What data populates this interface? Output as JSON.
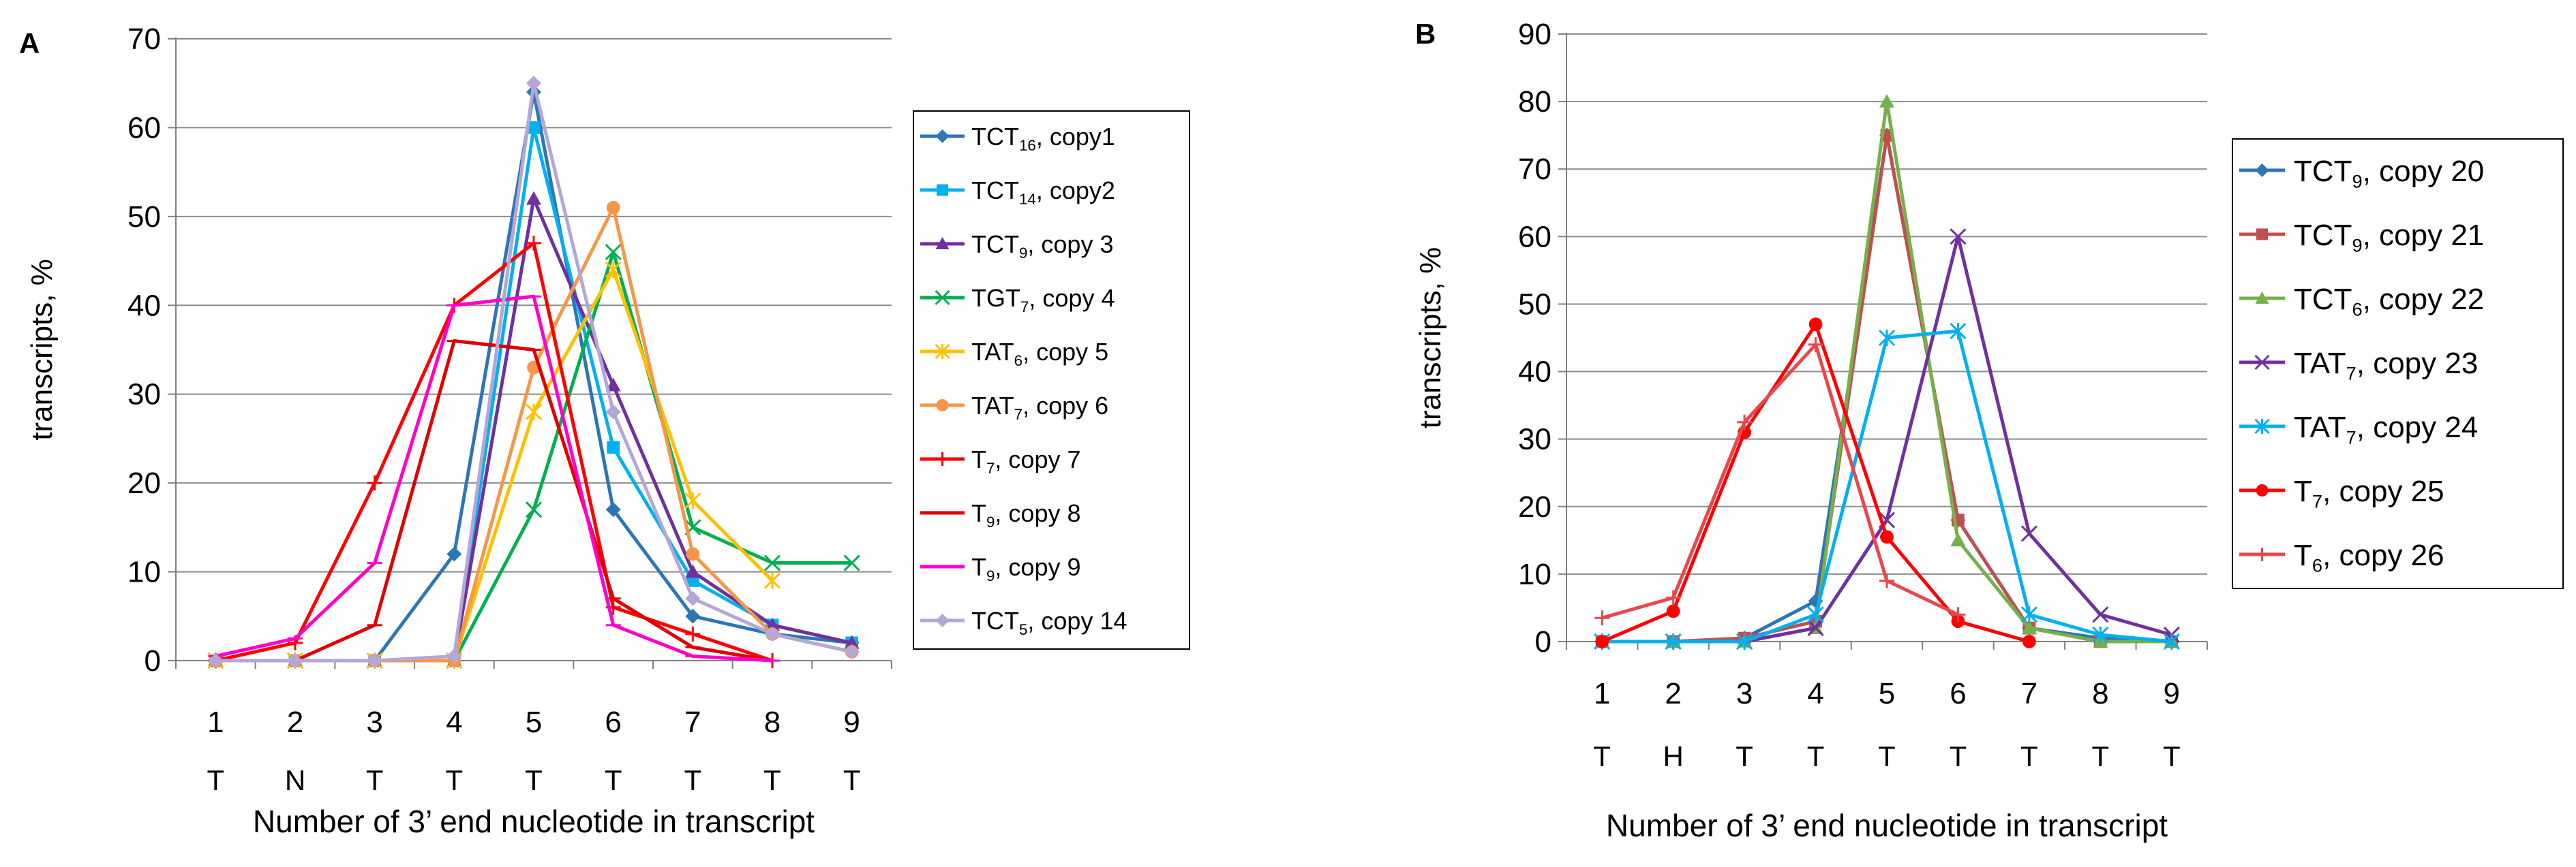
{
  "chart_data": [
    {
      "type": "line",
      "panel_label": "A",
      "ylabel": "transcripts, %",
      "xlabel": "Number of 3’ end nucleotide in transcript",
      "ylim": [
        0,
        70
      ],
      "yticks": [
        0,
        10,
        20,
        30,
        40,
        50,
        60,
        70
      ],
      "grid": true,
      "legend_position": "right",
      "x": [
        1,
        2,
        3,
        4,
        5,
        6,
        7,
        8,
        9
      ],
      "x_tick_labels": [
        "1",
        "2",
        "3",
        "4",
        "5",
        "6",
        "7",
        "8",
        "9"
      ],
      "x_letters": [
        "T",
        "N",
        "T",
        "T",
        "T",
        "T",
        "T",
        "T",
        "T"
      ],
      "series": [
        {
          "name": "TCT16, copy1",
          "base": "TCT",
          "sub": "16",
          "suffix": ", copy1",
          "color": "#2E75B6",
          "marker": "diamond",
          "values": [
            0,
            0,
            0,
            12,
            64,
            17,
            5,
            3,
            2
          ]
        },
        {
          "name": "TCT14, copy2",
          "base": "TCT",
          "sub": "14",
          "suffix": ", copy2",
          "color": "#00B0F0",
          "marker": "square",
          "values": [
            0,
            0,
            0,
            0,
            60,
            24,
            9,
            4,
            2
          ]
        },
        {
          "name": "TCT9, copy 3",
          "base": "TCT",
          "sub": "9",
          "suffix": ", copy 3",
          "color": "#7030A0",
          "marker": "triangle",
          "values": [
            0,
            0,
            0,
            0,
            52,
            31,
            10,
            4,
            2
          ]
        },
        {
          "name": "TGT7, copy 4",
          "base": "TGT",
          "sub": "7",
          "suffix": ", copy 4",
          "color": "#00B050",
          "marker": "x",
          "values": [
            0,
            0,
            0,
            0,
            17,
            46,
            15,
            11,
            11
          ]
        },
        {
          "name": "TAT6, copy 5",
          "base": "TAT",
          "sub": "6",
          "suffix": ", copy 5",
          "color": "#FFC000",
          "marker": "star",
          "values": [
            0,
            0,
            0,
            0,
            28,
            44,
            18,
            9,
            null
          ]
        },
        {
          "name": "TAT7, copy 6",
          "base": "TAT",
          "sub": "7",
          "suffix": ", copy 6",
          "color": "#F79646",
          "marker": "circle",
          "values": [
            0,
            0,
            0,
            0,
            33,
            51,
            12,
            3,
            1
          ]
        },
        {
          "name": "T7, copy 7",
          "base": "T",
          "sub": "7",
          "suffix": ", copy 7",
          "color": "#FF0000",
          "marker": "plus",
          "values": [
            0,
            2,
            20,
            40,
            47,
            6,
            3,
            0,
            null
          ]
        },
        {
          "name": "T9, copy 8",
          "base": "T",
          "sub": "9",
          "suffix": ", copy 8",
          "color": "#E00000",
          "marker": "dash",
          "values": [
            0,
            0,
            4,
            36,
            35,
            7,
            1.5,
            0,
            null
          ]
        },
        {
          "name": "T9, copy 9",
          "base": "T",
          "sub": "9",
          "suffix": ", copy 9",
          "color": "#FF00CC",
          "marker": "dash",
          "values": [
            0.5,
            2.5,
            11,
            40,
            41,
            4,
            0.5,
            0,
            null
          ]
        },
        {
          "name": "TCT5, copy 14",
          "base": "TCT",
          "sub": "5",
          "suffix": ", copy 14",
          "color": "#B4A7D6",
          "marker": "diamond",
          "values": [
            0,
            0,
            0,
            0.5,
            65,
            28,
            7,
            3,
            1
          ]
        }
      ]
    },
    {
      "type": "line",
      "panel_label": "B",
      "ylabel": "transcripts, %",
      "xlabel": "Number of 3’ end nucleotide in transcript",
      "ylim": [
        0,
        90
      ],
      "yticks": [
        0,
        10,
        20,
        30,
        40,
        50,
        60,
        70,
        80,
        90
      ],
      "grid": true,
      "legend_position": "right",
      "x": [
        1,
        2,
        3,
        4,
        5,
        6,
        7,
        8,
        9
      ],
      "x_tick_labels": [
        "1",
        "2",
        "3",
        "4",
        "5",
        "6",
        "7",
        "8",
        "9"
      ],
      "x_letters": [
        "T",
        "H",
        "T",
        "T",
        "T",
        "T",
        "T",
        "T",
        "T"
      ],
      "series": [
        {
          "name": "TCT9, copy 20",
          "base": "TCT",
          "sub": "9",
          "suffix": ", copy 20",
          "color": "#2E75B6",
          "marker": "diamond",
          "values": [
            0,
            0,
            0.5,
            6,
            75,
            18,
            2,
            0.5,
            0
          ]
        },
        {
          "name": "TCT9, copy 21",
          "base": "TCT",
          "sub": "9",
          "suffix": ", copy 21",
          "color": "#C0504D",
          "marker": "square",
          "values": [
            0,
            0,
            0.5,
            3,
            75,
            18,
            2,
            0,
            0
          ]
        },
        {
          "name": "TCT6, copy 22",
          "base": "TCT",
          "sub": "6",
          "suffix": ", copy 22",
          "color": "#77B04B",
          "marker": "triangle",
          "values": [
            0,
            0,
            0,
            2,
            80,
            15,
            2,
            0,
            0
          ]
        },
        {
          "name": "TAT7, copy 23",
          "base": "TAT",
          "sub": "7",
          "suffix": ", copy 23",
          "color": "#7030A0",
          "marker": "x",
          "values": [
            0,
            0,
            0,
            2,
            18,
            60,
            16,
            4,
            1
          ]
        },
        {
          "name": "TAT7, copy 24",
          "base": "TAT",
          "sub": "7",
          "suffix": ", copy 24",
          "color": "#00B0F0",
          "marker": "star",
          "values": [
            0,
            0,
            0,
            4,
            45,
            46,
            4,
            1,
            0
          ]
        },
        {
          "name": "T7, copy 25",
          "base": "T",
          "sub": "7",
          "suffix": ", copy 25",
          "color": "#FF0000",
          "marker": "circle",
          "values": [
            0,
            4.5,
            31,
            47,
            15.5,
            3,
            0,
            null,
            null
          ]
        },
        {
          "name": "T6, copy 26",
          "base": "T",
          "sub": "6",
          "suffix": ", copy 26",
          "color": "#E8474D",
          "marker": "plus",
          "values": [
            3.5,
            6.5,
            32.5,
            44,
            9,
            4,
            null,
            null,
            null
          ]
        }
      ]
    }
  ]
}
